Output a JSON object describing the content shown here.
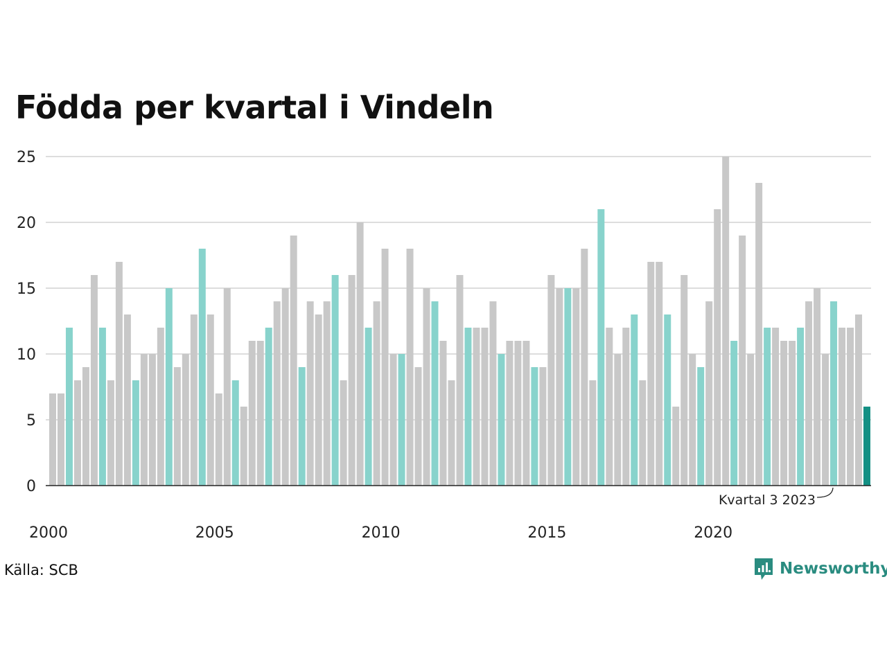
{
  "chart_data": {
    "type": "bar",
    "title": "Födda per kvartal i Vindeln",
    "xlabel": "",
    "ylabel": "",
    "x_tick_labels": [
      "2000",
      "2005",
      "2010",
      "2015",
      "2020"
    ],
    "y_ticks": [
      0,
      5,
      10,
      15,
      20,
      25
    ],
    "ylim": [
      0,
      25
    ],
    "grid": true,
    "colors": {
      "default": "#c8c8c8",
      "quarter3": "#88d3cc",
      "latest": "#139084",
      "grid": "#dddddd",
      "axis": "#222222"
    },
    "start_year": 2000,
    "start_quarter": 1,
    "values": [
      7,
      7,
      12,
      8,
      9,
      16,
      12,
      8,
      17,
      13,
      8,
      10,
      10,
      12,
      15,
      9,
      10,
      13,
      18,
      13,
      7,
      15,
      8,
      6,
      11,
      11,
      12,
      14,
      15,
      19,
      9,
      14,
      13,
      14,
      16,
      8,
      16,
      20,
      12,
      14,
      18,
      10,
      10,
      18,
      9,
      15,
      14,
      11,
      8,
      16,
      12,
      12,
      12,
      14,
      10,
      11,
      11,
      11,
      9,
      9,
      16,
      15,
      15,
      15,
      18,
      8,
      21,
      12,
      10,
      12,
      13,
      8,
      17,
      17,
      13,
      6,
      16,
      10,
      9,
      14,
      21,
      25,
      11,
      19,
      10,
      23,
      12,
      12,
      11,
      11,
      12,
      14,
      15,
      10,
      14,
      12,
      12,
      13,
      6
    ],
    "annotation": "Kvartal 3 2023",
    "source": "Källa: SCB"
  },
  "brand": {
    "name": "Newsworthy",
    "icon": "newsworthy-logo-icon"
  }
}
